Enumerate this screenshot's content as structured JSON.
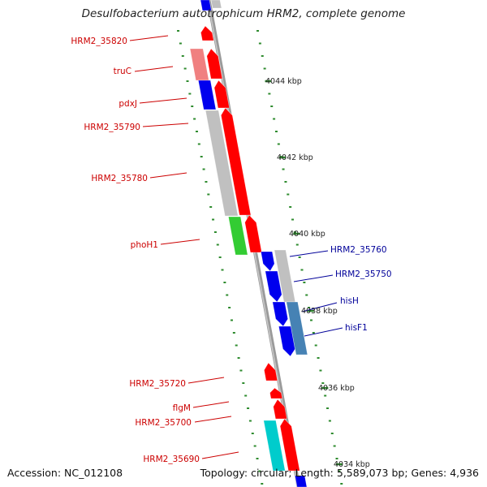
{
  "title": "Desulfobacterium autotrophicum HRM2, complete genome",
  "footer": {
    "accession": "Accession: NC_012108",
    "topology": "Topology: circular; Length: 5,589,073 bp; Genes: 4,936"
  },
  "colors": {
    "red_label": "#cc0000",
    "blue_label": "#000099",
    "gene_red": "#ff0000",
    "gene_pink": "#f08080",
    "gene_blue": "#0000ee",
    "gene_grey": "#c0c0c0",
    "gene_green": "#33cc33",
    "gene_steelblue": "#4682b4",
    "gene_cyan": "#00cccc",
    "tick_green": "#2e8b2e",
    "backbone": "#808080"
  },
  "scale_labels": [
    "4044 kbp",
    "4042 kbp",
    "4040 kbp",
    "4038 kbp",
    "4036 kbp",
    "4034 kbp"
  ],
  "left_labels": [
    "HRM2_35820",
    "truC",
    "pdxJ",
    "HRM2_35790",
    "HRM2_35780",
    "phoH1",
    "HRM2_35720",
    "flgM",
    "HRM2_35700",
    "HRM2_35690"
  ],
  "right_labels": [
    "HRM2_35760",
    "HRM2_35750",
    "hisH",
    "hisF1"
  ],
  "genes": [
    {
      "name": "HRM2_35820",
      "strand": "forward",
      "color": "gene_red"
    },
    {
      "name": "truC",
      "strand": "forward",
      "color": "gene_red"
    },
    {
      "name": "truC",
      "strand": "feature",
      "color": "gene_pink"
    },
    {
      "name": "pdxJ",
      "strand": "forward",
      "color": "gene_red"
    },
    {
      "name": "pdxJ",
      "strand": "feature",
      "color": "gene_blue"
    },
    {
      "name": "HRM2_35790",
      "strand": "forward",
      "color": "gene_red"
    },
    {
      "name": "HRM2_35790",
      "strand": "feature",
      "color": "gene_grey"
    },
    {
      "name": "phoH1",
      "strand": "forward",
      "color": "gene_red"
    },
    {
      "name": "phoH1",
      "strand": "feature",
      "color": "gene_green"
    },
    {
      "name": "HRM2_35760",
      "strand": "reverse",
      "color": "gene_blue"
    },
    {
      "name": "HRM2_35750",
      "strand": "reverse",
      "color": "gene_blue"
    },
    {
      "name": "hisH",
      "strand": "reverse",
      "color": "gene_blue"
    },
    {
      "name": "hisF1",
      "strand": "reverse",
      "color": "gene_blue"
    },
    {
      "name": "HRM2_35760",
      "strand": "feature",
      "color": "gene_grey"
    },
    {
      "name": "hisF1",
      "strand": "feature",
      "color": "gene_steelblue"
    },
    {
      "name": "HRM2_35720",
      "strand": "forward",
      "color": "gene_red"
    },
    {
      "name": "flgM",
      "strand": "forward",
      "color": "gene_red"
    },
    {
      "name": "HRM2_35700",
      "strand": "forward",
      "color": "gene_red"
    },
    {
      "name": "HRM2_35690",
      "strand": "forward",
      "color": "gene_red"
    },
    {
      "name": "HRM2_35690",
      "strand": "feature",
      "color": "gene_cyan"
    }
  ]
}
